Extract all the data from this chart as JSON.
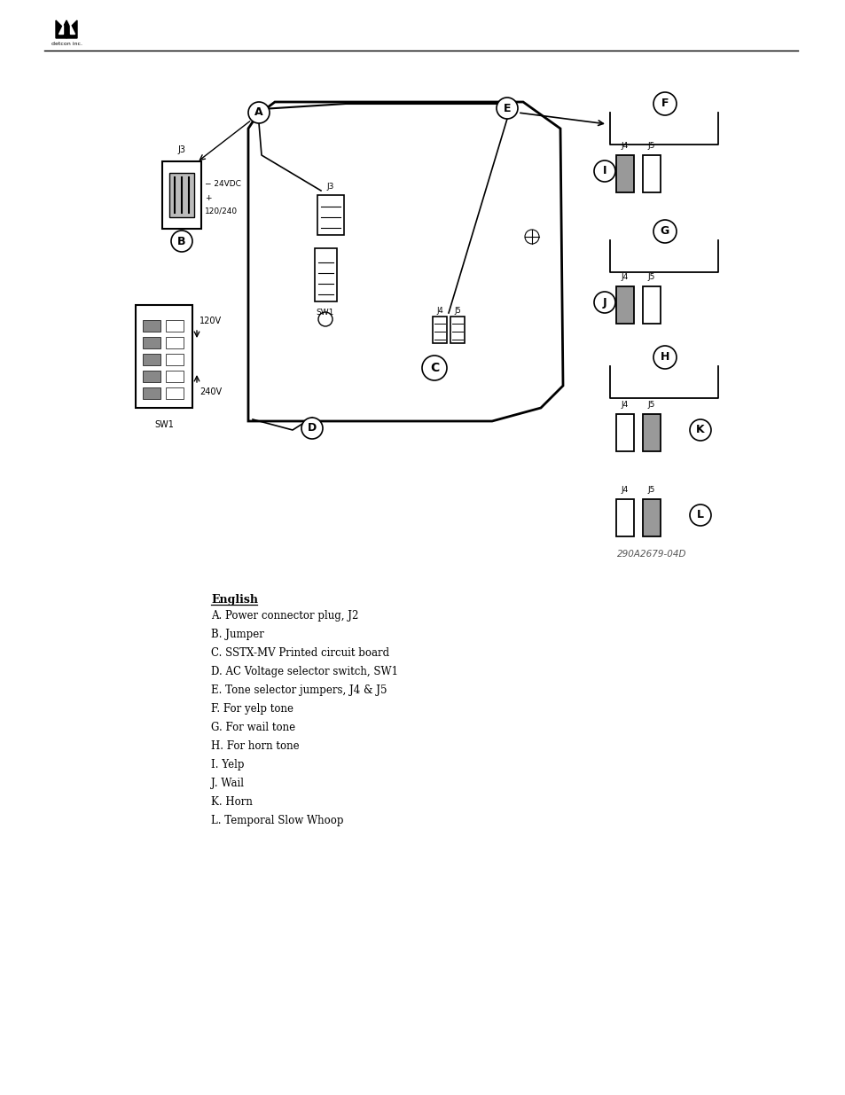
{
  "bg_color": "#ffffff",
  "line_color": "#000000",
  "logo_text": "detcon inc.",
  "legend_items": [
    "A. Power connector plug, J2",
    "B. Jumper",
    "C. SSTX-MV Printed circuit board",
    "D. AC Voltage selector switch, SW1",
    "E. Tone selector jumpers, J4 & J5",
    "F. For yelp tone",
    "G. For wail tone",
    "H. For horn tone",
    "I. Yelp",
    "J. Wail",
    "K. Horn",
    "L. Temporal Slow Whoop"
  ],
  "legend_header": "English",
  "part_number": "290A2679-04D"
}
